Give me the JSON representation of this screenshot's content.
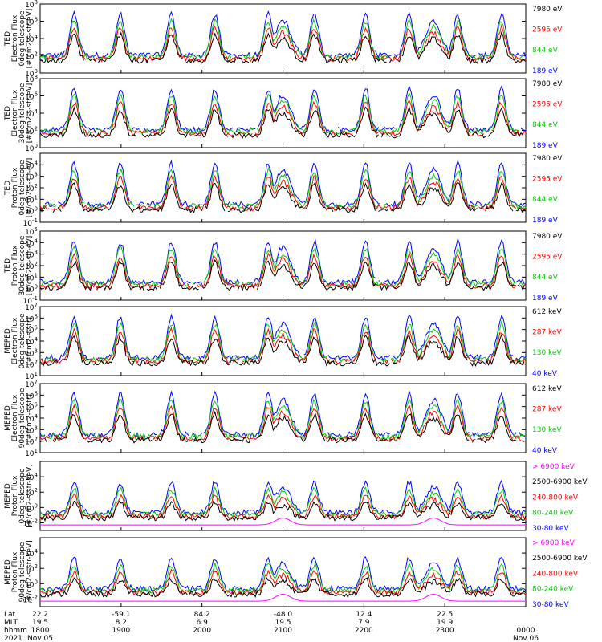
{
  "chart_data": {
    "type": "line",
    "description": "POES/MetOp TED and MEPED particle flux time series, 8 stacked panels, log y-axes",
    "x_axis": {
      "start": "1800",
      "end": "0000",
      "tick_labels_hhmm": [
        "1800",
        "1900",
        "2000",
        "2100",
        "2200",
        "2300",
        "0000"
      ],
      "row_labels": [
        "Lat",
        "MLT",
        "hhmm",
        "2021"
      ],
      "lat": [
        "22.2",
        "-59.1",
        "84.2",
        "-48.0",
        "12.4",
        "22.5",
        ""
      ],
      "mlt": [
        "19.5",
        "8.2",
        "6.9",
        "19.5",
        "7.9",
        "19.9",
        ""
      ],
      "dates": {
        "start": "Nov 05",
        "end": "Nov 06"
      }
    },
    "panels": [
      {
        "ylabel": [
          "TED",
          "Electron Flux",
          "0deg telescope",
          "[#/cm2-s-str-eV]"
        ],
        "ylog_range": [
          0,
          8
        ],
        "y_ticks": [
          {
            "base": "10",
            "exp": "8"
          },
          {
            "base": "10",
            "exp": "6"
          },
          {
            "base": "10",
            "exp": "4"
          },
          {
            "base": "10",
            "exp": "2"
          },
          {
            "base": "10",
            "exp": "0"
          }
        ],
        "series": [
          {
            "name": "7980 eV",
            "color": "#000000"
          },
          {
            "name": "2595 eV",
            "color": "#ff0000"
          },
          {
            "name": "844 eV",
            "color": "#00cc00"
          },
          {
            "name": "189 eV",
            "color": "#0000ff"
          }
        ]
      },
      {
        "ylabel": [
          "TED",
          "Electron Flux",
          "30deg telescope",
          "[#/cm2-s-str-eV]"
        ],
        "ylog_range": [
          0,
          8
        ],
        "y_ticks": [
          {
            "base": "10",
            "exp": "8"
          },
          {
            "base": "10",
            "exp": "6"
          },
          {
            "base": "10",
            "exp": "4"
          },
          {
            "base": "10",
            "exp": "2"
          },
          {
            "base": "10",
            "exp": "0"
          }
        ],
        "series": [
          {
            "name": "7980 eV",
            "color": "#000000"
          },
          {
            "name": "2595 eV",
            "color": "#ff0000"
          },
          {
            "name": "844 eV",
            "color": "#00cc00"
          },
          {
            "name": "189 eV",
            "color": "#0000ff"
          }
        ]
      },
      {
        "ylabel": [
          "TED",
          "Proton Flux",
          "0deg telescope",
          "[#/cm2-s-str-eV]"
        ],
        "ylog_range": [
          -1,
          5
        ],
        "y_ticks": [
          {
            "base": "10",
            "exp": "4"
          },
          {
            "base": "10",
            "exp": "3"
          },
          {
            "base": "10",
            "exp": "2"
          },
          {
            "base": "10",
            "exp": "1"
          },
          {
            "base": "10",
            "exp": "0"
          },
          {
            "base": "10",
            "exp": "-1"
          }
        ],
        "series": [
          {
            "name": "7980 eV",
            "color": "#000000"
          },
          {
            "name": "2595 eV",
            "color": "#ff0000"
          },
          {
            "name": "844 eV",
            "color": "#00cc00"
          },
          {
            "name": "189 eV",
            "color": "#0000ff"
          }
        ]
      },
      {
        "ylabel": [
          "TED",
          "Proton Flux",
          "30deg telescope",
          "[#/cm2-s-str-eV]"
        ],
        "ylog_range": [
          -1,
          5
        ],
        "y_ticks": [
          {
            "base": "10",
            "exp": "5"
          },
          {
            "base": "10",
            "exp": "4"
          },
          {
            "base": "10",
            "exp": "3"
          },
          {
            "base": "10",
            "exp": "2"
          },
          {
            "base": "10",
            "exp": "1"
          },
          {
            "base": "10",
            "exp": "0"
          },
          {
            "base": "10",
            "exp": "-1"
          }
        ],
        "series": [
          {
            "name": "7980 eV",
            "color": "#000000"
          },
          {
            "name": "2595 eV",
            "color": "#ff0000"
          },
          {
            "name": "844 eV",
            "color": "#00cc00"
          },
          {
            "name": "189 eV",
            "color": "#0000ff"
          }
        ]
      },
      {
        "ylabel": [
          "MEPED",
          "Electron Flux",
          "0deg telescope",
          "[#/cm2-s-str]"
        ],
        "ylog_range": [
          1,
          7
        ],
        "y_ticks": [
          {
            "base": "10",
            "exp": "7"
          },
          {
            "base": "10",
            "exp": "6"
          },
          {
            "base": "10",
            "exp": "5"
          },
          {
            "base": "10",
            "exp": "4"
          },
          {
            "base": "10",
            "exp": "3"
          },
          {
            "base": "10",
            "exp": "2"
          },
          {
            "base": "10",
            "exp": "1"
          }
        ],
        "series": [
          {
            "name": "612 keV",
            "color": "#000000"
          },
          {
            "name": "287 keV",
            "color": "#ff0000"
          },
          {
            "name": "130 keV",
            "color": "#00cc00"
          },
          {
            "name": "40 keV",
            "color": "#0000ff"
          }
        ]
      },
      {
        "ylabel": [
          "MEPED",
          "Electron Flux",
          "90deg telescope",
          "[#/cm2-s-str]"
        ],
        "ylog_range": [
          1,
          7
        ],
        "y_ticks": [
          {
            "base": "10",
            "exp": "7"
          },
          {
            "base": "10",
            "exp": "6"
          },
          {
            "base": "10",
            "exp": "5"
          },
          {
            "base": "10",
            "exp": "4"
          },
          {
            "base": "10",
            "exp": "3"
          },
          {
            "base": "10",
            "exp": "2"
          },
          {
            "base": "10",
            "exp": "1"
          }
        ],
        "series": [
          {
            "name": "612 keV",
            "color": "#000000"
          },
          {
            "name": "287 keV",
            "color": "#ff0000"
          },
          {
            "name": "130 keV",
            "color": "#00cc00"
          },
          {
            "name": "40 keV",
            "color": "#0000ff"
          }
        ]
      },
      {
        "ylabel": [
          "MEPED",
          "Proton Flux",
          "0deg telescope",
          "[#/cm2-s-str-keV]"
        ],
        "ylog_range": [
          -3,
          6
        ],
        "y_ticks": [
          {
            "base": "10",
            "exp": "4"
          },
          {
            "base": "10",
            "exp": "2"
          },
          {
            "base": "10",
            "exp": "0"
          },
          {
            "base": "10",
            "exp": "-2"
          }
        ],
        "series": [
          {
            "name": "> 6900 keV",
            "color": "#ff00ff"
          },
          {
            "name": "2500-6900 keV",
            "color": "#000000"
          },
          {
            "name": "240-800 keV",
            "color": "#ff0000"
          },
          {
            "name": "80-240 keV",
            "color": "#00cc00"
          },
          {
            "name": "30-80 keV",
            "color": "#0000ff"
          }
        ]
      },
      {
        "ylabel": [
          "MEPED",
          "Proton Flux",
          "90deg telescope",
          "[#/cm2-s-str-keV]"
        ],
        "ylog_range": [
          -3,
          6
        ],
        "y_ticks": [
          {
            "base": "10",
            "exp": "4"
          },
          {
            "base": "10",
            "exp": "2"
          },
          {
            "base": "10",
            "exp": "0"
          },
          {
            "base": "10",
            "exp": "-2"
          }
        ],
        "series": [
          {
            "name": "> 6900 keV",
            "color": "#ff00ff"
          },
          {
            "name": "2500-6900 keV",
            "color": "#000000"
          },
          {
            "name": "240-800 keV",
            "color": "#ff0000"
          },
          {
            "name": "80-240 keV",
            "color": "#00cc00"
          },
          {
            "name": "30-80 keV",
            "color": "#0000ff"
          }
        ]
      }
    ]
  }
}
